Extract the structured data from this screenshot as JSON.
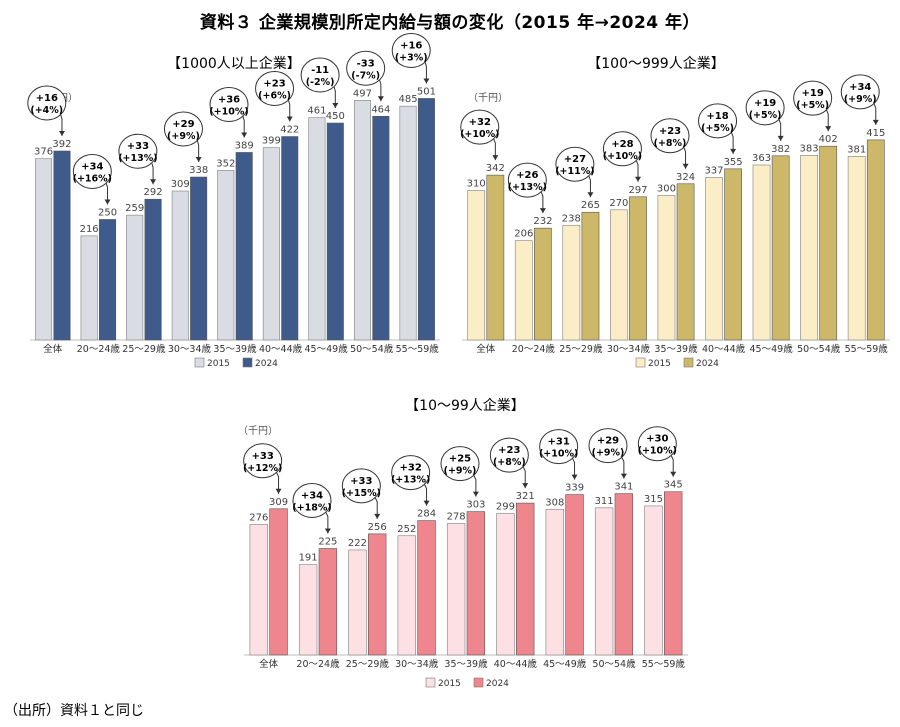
{
  "title": "資料３ 企業規模別所定内給与額の変化（2015 年→2024 年）",
  "source_note": "（出所）資料１と同じ",
  "chart_data": [
    {
      "type": "bar",
      "title": "【1000人以上企業】",
      "unit_label": "（千円）",
      "categories": [
        "全体",
        "20～24歳",
        "25～29歳",
        "30～34歳",
        "35～39歳",
        "40～44歳",
        "45～49歳",
        "50～54歳",
        "55～59歳"
      ],
      "series": [
        {
          "name": "2015",
          "color": "#d9dde3",
          "values": [
            376,
            216,
            259,
            309,
            352,
            399,
            461,
            497,
            485
          ]
        },
        {
          "name": "2024",
          "color": "#3f5b8c",
          "values": [
            392,
            250,
            292,
            338,
            389,
            422,
            450,
            464,
            501
          ]
        }
      ],
      "change_labels": [
        [
          "+16",
          "(+4%)"
        ],
        [
          "+34",
          "(+16%)"
        ],
        [
          "+33",
          "(+13%)"
        ],
        [
          "+29",
          "(+9%)"
        ],
        [
          "+36",
          "(+10%)"
        ],
        [
          "+23",
          "(+6%)"
        ],
        [
          "-11",
          "(-2%)"
        ],
        [
          "-33",
          "(-7%)"
        ],
        [
          "+16",
          "(+3%)"
        ]
      ],
      "ylim": [
        0,
        560
      ],
      "legend_position": "bottom"
    },
    {
      "type": "bar",
      "title": "【100～999人企業】",
      "unit_label": "（千円）",
      "categories": [
        "全体",
        "20～24歳",
        "25～29歳",
        "30～34歳",
        "35～39歳",
        "40～44歳",
        "45～49歳",
        "50～54歳",
        "55～59歳"
      ],
      "series": [
        {
          "name": "2015",
          "color": "#fbeec6",
          "values": [
            310,
            206,
            238,
            270,
            300,
            337,
            363,
            383,
            381
          ]
        },
        {
          "name": "2024",
          "color": "#cdb86a",
          "values": [
            342,
            232,
            265,
            297,
            324,
            355,
            382,
            402,
            415
          ]
        }
      ],
      "change_labels": [
        [
          "+32",
          "(+10%)"
        ],
        [
          "+26",
          "(+13%)"
        ],
        [
          "+27",
          "(+11%)"
        ],
        [
          "+28",
          "(+10%)"
        ],
        [
          "+23",
          "(+8%)"
        ],
        [
          "+18",
          "(+5%)"
        ],
        [
          "+19",
          "(+5%)"
        ],
        [
          "+19",
          "(+5%)"
        ],
        [
          "+34",
          "(+9%)"
        ]
      ],
      "ylim": [
        0,
        560
      ],
      "legend_position": "bottom"
    },
    {
      "type": "bar",
      "title": "【10～99人企業】",
      "unit_label": "（千円）",
      "categories": [
        "全体",
        "20～24歳",
        "25～29歳",
        "30～34歳",
        "35～39歳",
        "40～44歳",
        "45～49歳",
        "50～54歳",
        "55～59歳"
      ],
      "series": [
        {
          "name": "2015",
          "color": "#fde0e3",
          "values": [
            276,
            191,
            222,
            252,
            278,
            299,
            308,
            311,
            315
          ]
        },
        {
          "name": "2024",
          "color": "#ef868d",
          "values": [
            309,
            225,
            256,
            284,
            303,
            321,
            339,
            341,
            345
          ]
        }
      ],
      "change_labels": [
        [
          "+33",
          "(+12%)"
        ],
        [
          "+34",
          "(+18%)"
        ],
        [
          "+33",
          "(+15%)"
        ],
        [
          "+32",
          "(+13%)"
        ],
        [
          "+25",
          "(+9%)"
        ],
        [
          "+23",
          "(+8%)"
        ],
        [
          "+31",
          "(+10%)"
        ],
        [
          "+29",
          "(+9%)"
        ],
        [
          "+30",
          "(+10%)"
        ]
      ],
      "ylim": [
        0,
        560
      ],
      "legend_position": "bottom"
    }
  ]
}
